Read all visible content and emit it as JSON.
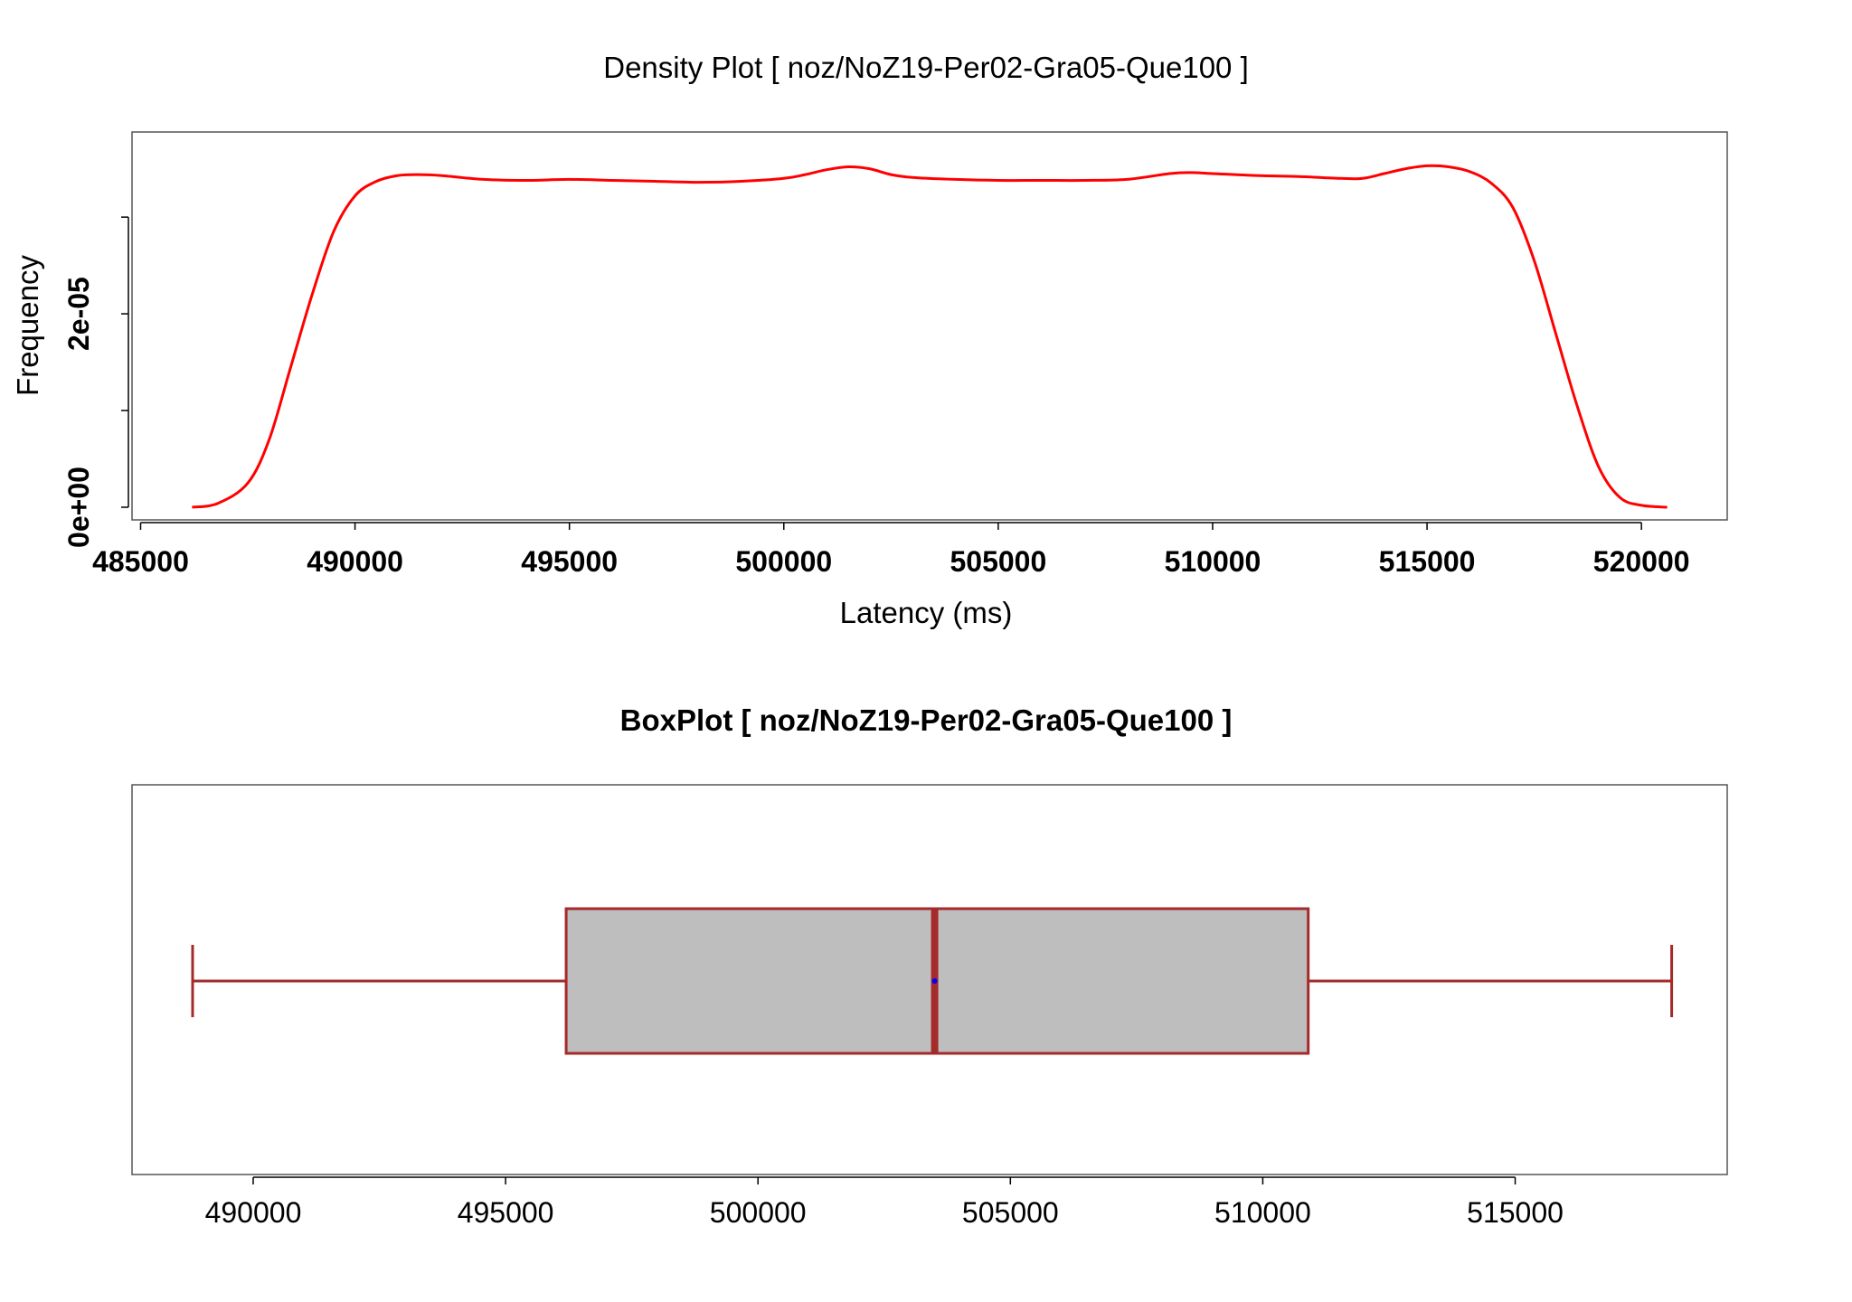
{
  "chart_data": [
    {
      "type": "line",
      "title": "Density Plot [ noz/NoZ19-Per02-Gra05-Que100 ]",
      "xlabel": "Latency (ms)",
      "ylabel": "Frequency",
      "xlim": [
        484800,
        522000
      ],
      "ylim": [
        0,
        3.88e-05
      ],
      "x_ticks": [
        "485000",
        "490000",
        "495000",
        "500000",
        "505000",
        "510000",
        "515000",
        "520000"
      ],
      "y_ticks": [
        "0e+00",
        "2e-05"
      ],
      "y_ticks_unlabeled": [
        1e-05,
        3e-05
      ],
      "grid": false,
      "series": [
        {
          "color": "#ff0000",
          "x": [
            486200,
            486800,
            487500,
            488000,
            488500,
            489000,
            489500,
            490000,
            490500,
            491000,
            491500,
            492000,
            493000,
            494000,
            495000,
            496000,
            497000,
            498000,
            499000,
            500000,
            500500,
            501000,
            501500,
            502000,
            502500,
            503000,
            504000,
            505000,
            506000,
            507000,
            508000,
            509000,
            509500,
            510000,
            511000,
            512000,
            513000,
            513500,
            514000,
            514500,
            515000,
            515500,
            516000,
            516500,
            517000,
            517500,
            518000,
            518500,
            519000,
            519500,
            520000,
            520600
          ],
          "y": [
            0.0,
            4e-07,
            2.5e-06,
            7e-06,
            1.45e-05,
            2.2e-05,
            2.85e-05,
            3.22e-05,
            3.37e-05,
            3.43e-05,
            3.44e-05,
            3.43e-05,
            3.39e-05,
            3.38e-05,
            3.39e-05,
            3.38e-05,
            3.37e-05,
            3.36e-05,
            3.37e-05,
            3.4e-05,
            3.44e-05,
            3.49e-05,
            3.52e-05,
            3.5e-05,
            3.44e-05,
            3.41e-05,
            3.39e-05,
            3.38e-05,
            3.38e-05,
            3.38e-05,
            3.39e-05,
            3.45e-05,
            3.46e-05,
            3.45e-05,
            3.43e-05,
            3.42e-05,
            3.4e-05,
            3.4e-05,
            3.45e-05,
            3.5e-05,
            3.53e-05,
            3.52e-05,
            3.47e-05,
            3.35e-05,
            3.1e-05,
            2.55e-05,
            1.8e-05,
            1.05e-05,
            4.2e-06,
            1e-06,
            2e-07,
            0.0
          ]
        }
      ]
    },
    {
      "type": "box",
      "title": "BoxPlot [ noz/NoZ19-Per02-Gra05-Que100 ]",
      "xlim": [
        487600,
        519200
      ],
      "x_ticks": [
        "490000",
        "495000",
        "500000",
        "505000",
        "510000",
        "515000"
      ],
      "min": 488800,
      "q1": 496200,
      "median": 503500,
      "q3": 510900,
      "max": 518100,
      "mean": 503500,
      "box_fill": "#bebebe",
      "box_stroke": "#a52a2a",
      "mean_color": "#0000ff"
    }
  ]
}
